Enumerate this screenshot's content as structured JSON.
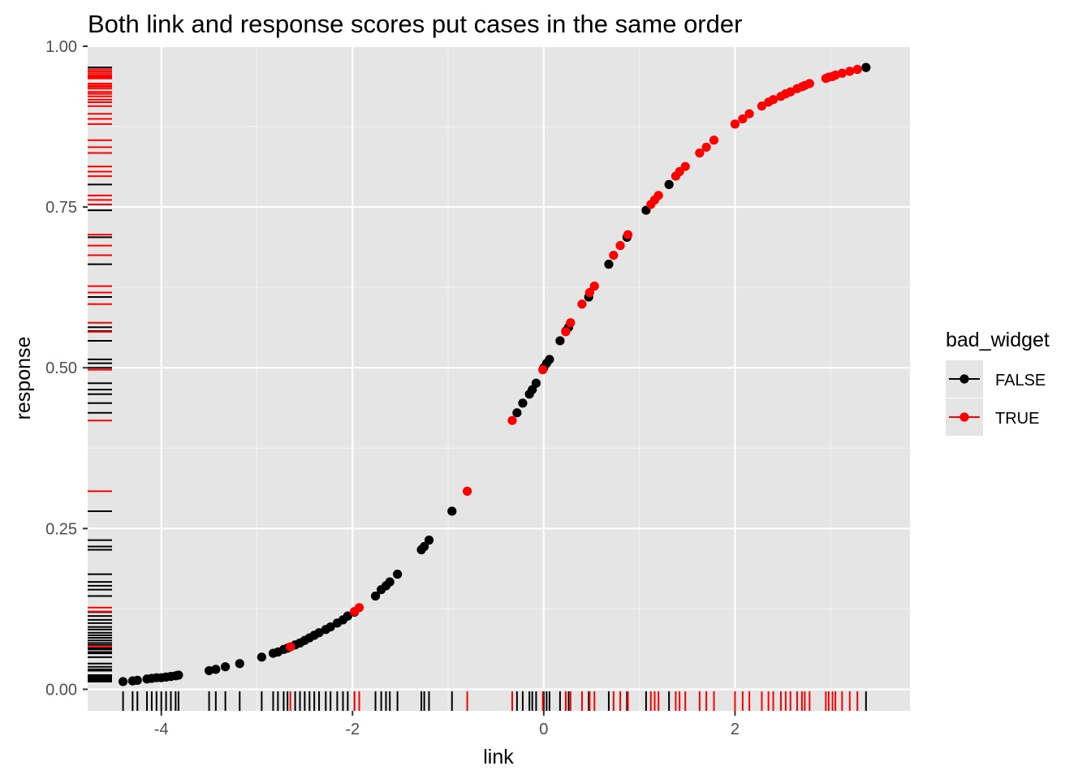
{
  "chart_data": {
    "type": "scatter",
    "title": "Both link and response scores put cases in the same order",
    "xlabel": "link",
    "ylabel": "response",
    "xlim": [
      -4.77,
      3.83
    ],
    "ylim": [
      -0.0335,
      1.0
    ],
    "x_ticks": [
      -4,
      -2,
      0,
      2
    ],
    "x_tick_labels": [
      "-4",
      "-2",
      "0",
      "2"
    ],
    "y_ticks": [
      0.0,
      0.25,
      0.5,
      0.75,
      1.0
    ],
    "y_tick_labels": [
      "0.00",
      "0.25",
      "0.50",
      "0.75",
      "1.00"
    ],
    "grid": true,
    "rug": true,
    "legend": {
      "title": "bad_widget",
      "position": "right",
      "entries": [
        {
          "label": "FALSE",
          "color": "#000000"
        },
        {
          "label": "TRUE",
          "color": "#ff0000"
        }
      ]
    },
    "colors": {
      "FALSE": "#000000",
      "TRUE": "#ff0000",
      "panel": "#e5e5e5",
      "grid": "#ffffff"
    },
    "series": [
      {
        "name": "FALSE",
        "color": "#000000",
        "x": [
          -4.4,
          -4.3,
          -4.25,
          -4.15,
          -4.1,
          -4.05,
          -4.0,
          -3.95,
          -3.9,
          -3.85,
          -3.82,
          -3.5,
          -3.43,
          -3.33,
          -3.18,
          -2.95,
          -2.83,
          -2.78,
          -2.72,
          -2.68,
          -2.6,
          -2.55,
          -2.5,
          -2.45,
          -2.4,
          -2.35,
          -2.28,
          -2.23,
          -2.16,
          -2.1,
          -2.05,
          -1.98,
          -1.76,
          -1.7,
          -1.65,
          -1.61,
          -1.53,
          -1.28,
          -1.25,
          -1.2,
          -0.96,
          -0.28,
          -0.22,
          -0.15,
          -0.12,
          -0.08,
          0.0,
          0.03,
          0.06,
          0.17,
          0.23,
          0.26,
          0.47,
          0.68,
          0.87,
          1.07,
          1.31,
          3.37
        ],
        "y": [
          0.012,
          0.013,
          0.014,
          0.016,
          0.017,
          0.018,
          0.018,
          0.019,
          0.02,
          0.021,
          0.022,
          0.029,
          0.031,
          0.035,
          0.04,
          0.05,
          0.056,
          0.058,
          0.062,
          0.064,
          0.069,
          0.072,
          0.076,
          0.08,
          0.084,
          0.088,
          0.093,
          0.097,
          0.103,
          0.108,
          0.114,
          0.12,
          0.145,
          0.155,
          0.161,
          0.167,
          0.179,
          0.217,
          0.222,
          0.232,
          0.277,
          0.43,
          0.445,
          0.459,
          0.466,
          0.476,
          0.5,
          0.507,
          0.513,
          0.542,
          0.557,
          0.563,
          0.61,
          0.661,
          0.703,
          0.745,
          0.785,
          0.967
        ]
      },
      {
        "name": "TRUE",
        "color": "#ff0000",
        "x": [
          -2.65,
          -1.98,
          -1.93,
          -0.8,
          -0.33,
          -0.01,
          0.23,
          0.28,
          0.4,
          0.48,
          0.53,
          0.73,
          0.8,
          0.88,
          1.12,
          1.16,
          1.2,
          1.38,
          1.42,
          1.48,
          1.63,
          1.7,
          1.78,
          2.0,
          2.08,
          2.15,
          2.28,
          2.35,
          2.4,
          2.48,
          2.53,
          2.58,
          2.65,
          2.7,
          2.73,
          2.78,
          2.95,
          2.98,
          3.02,
          3.05,
          3.12,
          3.2,
          3.28
        ],
        "y": [
          0.066,
          0.121,
          0.127,
          0.308,
          0.418,
          0.497,
          0.556,
          0.57,
          0.599,
          0.617,
          0.627,
          0.675,
          0.69,
          0.707,
          0.754,
          0.761,
          0.768,
          0.798,
          0.805,
          0.813,
          0.834,
          0.843,
          0.854,
          0.879,
          0.887,
          0.895,
          0.907,
          0.913,
          0.917,
          0.922,
          0.926,
          0.929,
          0.934,
          0.937,
          0.939,
          0.942,
          0.95,
          0.952,
          0.953,
          0.955,
          0.958,
          0.961,
          0.964
        ]
      }
    ]
  }
}
